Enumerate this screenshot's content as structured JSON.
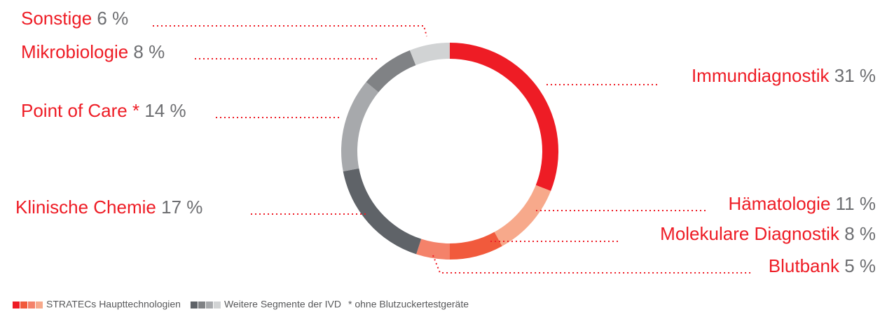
{
  "chart_data": {
    "type": "donut",
    "categories": [
      "Immundiagnostik",
      "Hämatologie",
      "Molekulare Diagnostik",
      "Blutbank",
      "Klinische Chemie",
      "Point of Care *",
      "Mikrobiologie",
      "Sonstige"
    ],
    "values": [
      31,
      11,
      8,
      5,
      17,
      14,
      8,
      6
    ],
    "value_labels": [
      "31 %",
      "11 %",
      "8 %",
      "5 %",
      "17 %",
      "14 %",
      "8 %",
      "6 %"
    ],
    "colors": [
      "#ee1c25",
      "#f7a98b",
      "#f15a3c",
      "#f4826a",
      "#5f6368",
      "#a7a9ac",
      "#808285",
      "#d1d3d4"
    ],
    "legend": [
      {
        "label": "STRATECs Haupttechnologien",
        "colors": [
          "#ee1c25",
          "#f15a3c",
          "#f4826a",
          "#f7a98b"
        ]
      },
      {
        "label": "Weitere Segmente der IVD",
        "colors": [
          "#5f6368",
          "#808285",
          "#a7a9ac",
          "#d1d3d4"
        ]
      }
    ],
    "footnote": "* ohne Blutzuckertestgeräte"
  }
}
